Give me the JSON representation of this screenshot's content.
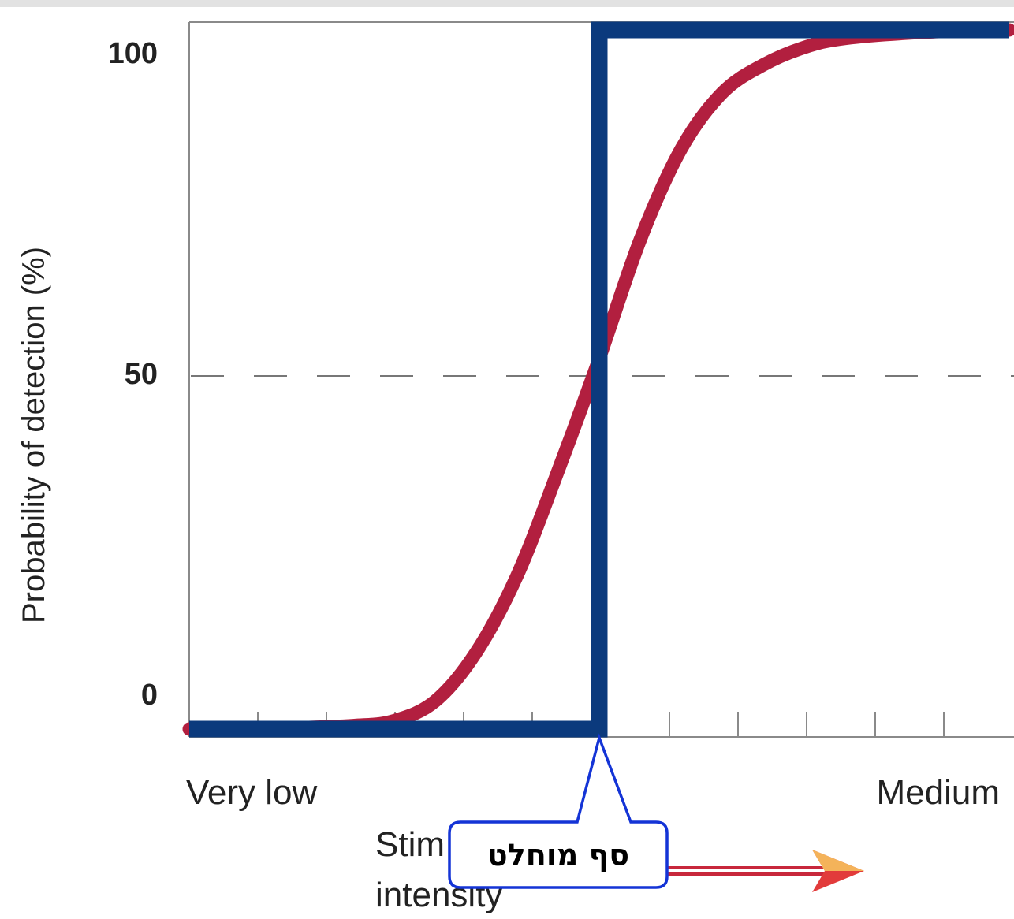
{
  "chart_data": {
    "type": "line",
    "ylabel": "Probability of detection (%)",
    "ylim": [
      0,
      100
    ],
    "yticks": [
      "0",
      "50",
      "100"
    ],
    "x_start_label": "Very low",
    "x_end_label": "Medium",
    "xlabel_line1": "Stim",
    "xlabel_line2": "intensity",
    "reference_line_y": 50,
    "series": [
      {
        "color": "#b21f3f",
        "shape": "sigmoid",
        "x": [
          0,
          0.1,
          0.2,
          0.25,
          0.3,
          0.35,
          0.4,
          0.45,
          0.5,
          0.55,
          0.6,
          0.65,
          0.7,
          0.75,
          0.8,
          0.9,
          1.0
        ],
        "y": [
          0,
          0.1,
          0.5,
          1.2,
          4,
          11,
          22,
          37,
          53,
          70,
          83,
          91,
          95,
          97.5,
          98.8,
          99.7,
          100
        ]
      },
      {
        "color": "#0b3a7d",
        "shape": "step",
        "step_at_x": 0.5,
        "x": [
          0,
          0.5,
          0.5,
          1.0
        ],
        "y": [
          0,
          0,
          100,
          100
        ]
      }
    ],
    "callout": {
      "text": "סף מוחלט",
      "border_color": "#1434d6"
    },
    "arrow_color": "#d9323c"
  }
}
